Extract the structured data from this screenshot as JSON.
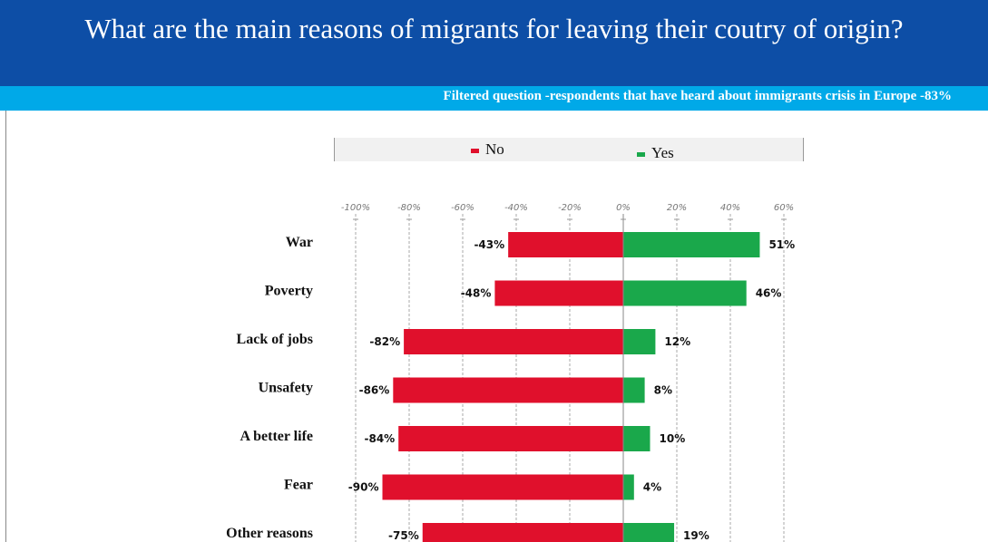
{
  "header": {
    "title": "What are the main reasons of migrants for leaving their coutry of origin?",
    "subtitle": "Filtered question -respondents that have heard about immigrants crisis in Europe -83%"
  },
  "colors": {
    "header_bg": "#0d4ea6",
    "subheader_bg": "#00a9e8",
    "no": "#e0102c",
    "yes": "#1aa84b"
  },
  "chart_data": {
    "type": "bar",
    "orientation": "horizontal",
    "stacking": "diverging",
    "categories": [
      "War",
      "Poverty",
      "Lack of jobs",
      "Unsafety",
      "A better life",
      "Fear",
      "Other reasons"
    ],
    "series": [
      {
        "name": "No",
        "color": "#e0102c",
        "values": [
          -43,
          -48,
          -82,
          -86,
          -84,
          -90,
          -75
        ],
        "labels": [
          "-43%",
          "-48%",
          "-82%",
          "-86%",
          "-84%",
          "-90%",
          "-75%"
        ]
      },
      {
        "name": "Yes",
        "color": "#1aa84b",
        "values": [
          51,
          46,
          12,
          8,
          10,
          4,
          19
        ],
        "labels": [
          "51%",
          "46%",
          "12%",
          "8%",
          "10%",
          "4%",
          "19%"
        ]
      }
    ],
    "xlim": [
      -100,
      60
    ],
    "xticks": [
      -100,
      -80,
      -60,
      -40,
      -20,
      0,
      20,
      40,
      60
    ],
    "xtick_labels": [
      "-100%",
      "-80%",
      "-60%",
      "-40%",
      "-20%",
      "0%",
      "20%",
      "40%",
      "60%"
    ],
    "legend": {
      "position": "top",
      "entries": [
        "No",
        "Yes"
      ]
    },
    "grid": true
  }
}
